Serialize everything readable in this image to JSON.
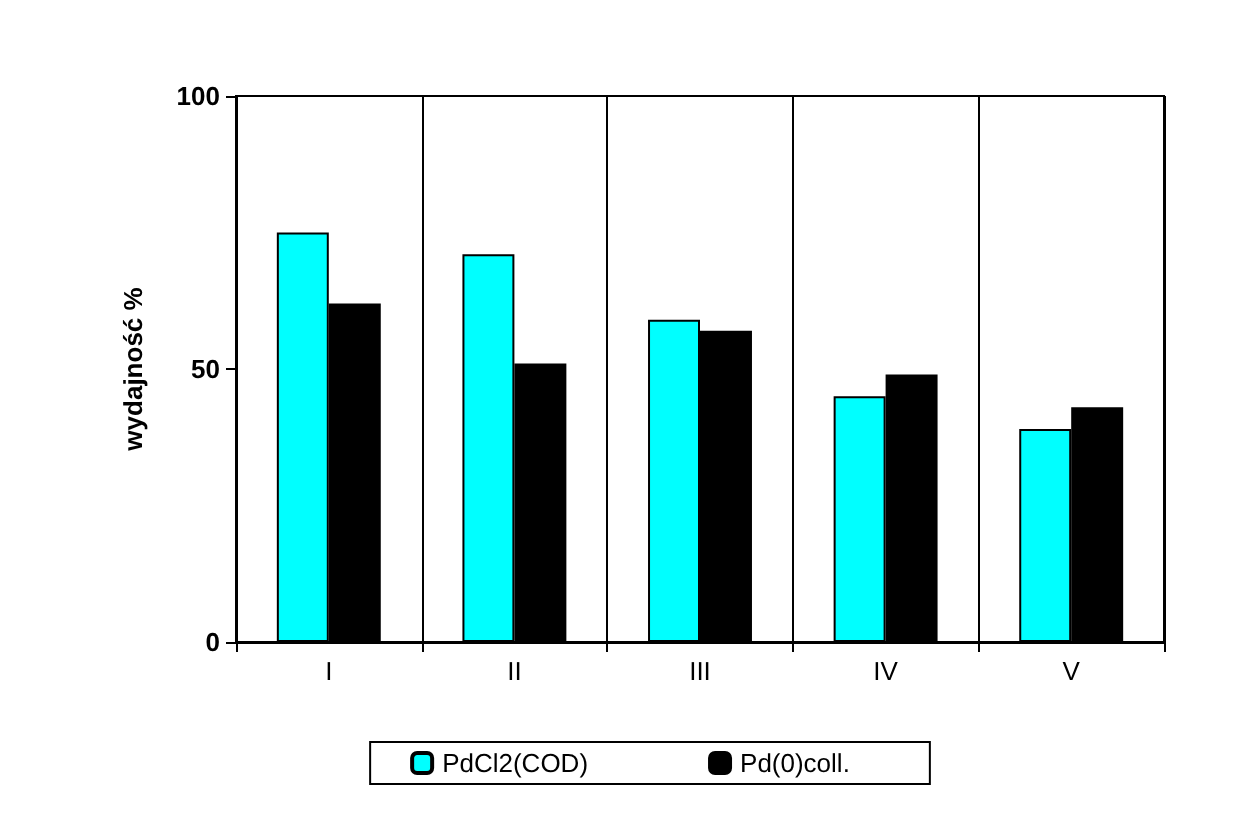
{
  "chart_data": {
    "type": "bar",
    "ylabel": "wydajność %",
    "categories": [
      "I",
      "II",
      "III",
      "IV",
      "V"
    ],
    "series": [
      {
        "name": "PdCl2(COD)",
        "color": "#00ffff",
        "values": [
          75,
          71,
          59,
          45,
          39
        ]
      },
      {
        "name": "Pd(0)coll.",
        "color": "#000000",
        "values": [
          62,
          51,
          57,
          49,
          43
        ]
      }
    ],
    "ylim": [
      0,
      100
    ],
    "yticks": [
      0,
      50,
      100
    ],
    "grid": "x",
    "legend": "bottom"
  }
}
